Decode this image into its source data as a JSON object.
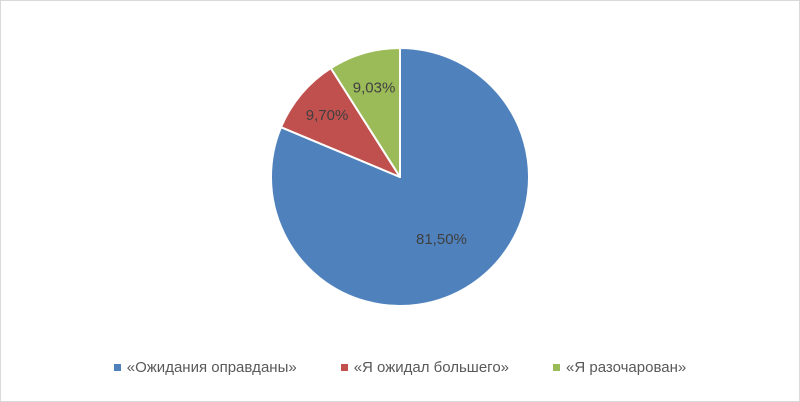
{
  "chart_data": {
    "type": "pie",
    "title": "",
    "categories": [
      "«Ожидания оправданы»",
      "«Я ожидал большего»",
      "«Я разочарован»"
    ],
    "values": [
      81.5,
      9.7,
      9.03
    ],
    "data_labels": [
      "81,50%",
      "9,70%",
      "9,03%"
    ],
    "colors": [
      "#4f81bd",
      "#c0504d",
      "#9bbb59"
    ],
    "legend_position": "bottom",
    "start_angle": "top",
    "direction": "clockwise"
  }
}
